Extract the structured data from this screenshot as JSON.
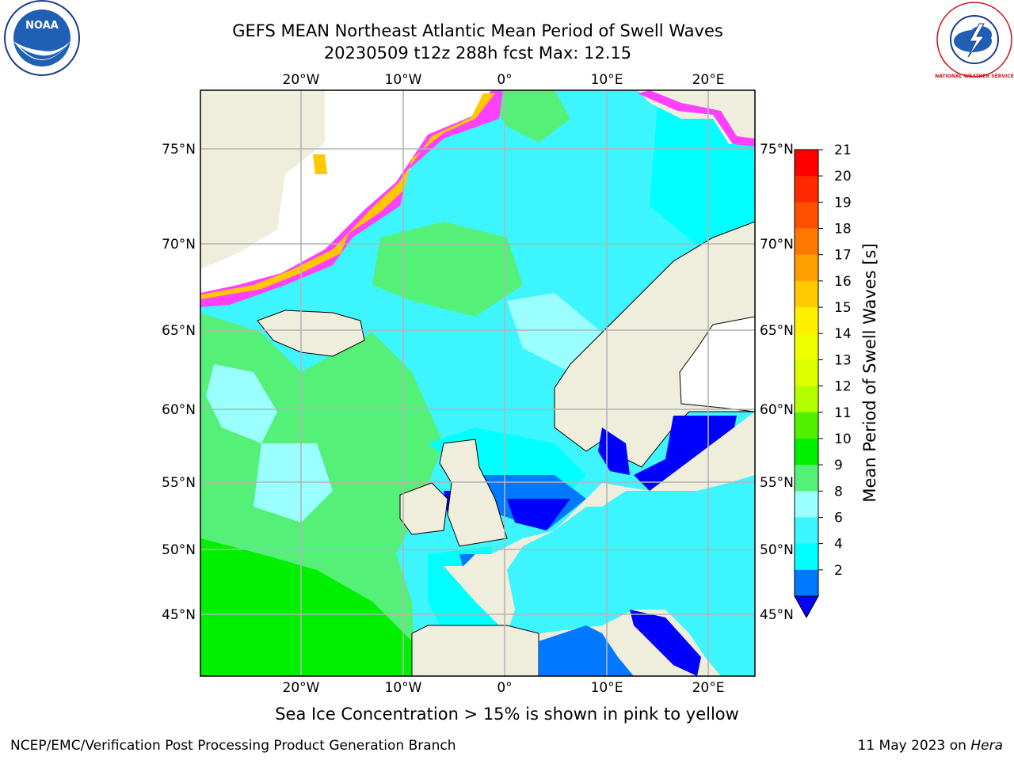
{
  "title": {
    "line1": "GEFS MEAN Northeast Atlantic Mean Period of Swell Waves",
    "line2": "20230509 t12z 288h fcst   Max: 12.15"
  },
  "logos": {
    "left": "NOAA",
    "right": "NATIONAL WEATHER SERVICE"
  },
  "map": {
    "lon_labels": [
      "20°W",
      "10°W",
      "0°",
      "10°E",
      "20°E"
    ],
    "lat_labels": [
      "75°N",
      "70°N",
      "65°N",
      "60°N",
      "55°N",
      "50°N",
      "45°N"
    ],
    "land_color": "#efeddc",
    "ocean_colors": [
      "#00ffff",
      "#3cf5ff",
      "#9bffff",
      "#55f078",
      "#00f000"
    ]
  },
  "colorbar": {
    "label": "Mean Period of Swell Waves [s]",
    "ticks": [
      "21",
      "20",
      "19",
      "18",
      "17",
      "16",
      "15",
      "14",
      "13",
      "12",
      "11",
      "10",
      "9",
      "8",
      "6",
      "4",
      "2"
    ],
    "colors": [
      "#ff0000",
      "#ff2800",
      "#ff5000",
      "#ff7800",
      "#ffa000",
      "#ffc800",
      "#fff000",
      "#f0ff00",
      "#dcff00",
      "#b4ff00",
      "#50f000",
      "#00f000",
      "#55f078",
      "#9bffff",
      "#3cf5ff",
      "#00ffff",
      "#0078ff"
    ],
    "under_color": "#0000ff"
  },
  "footer": {
    "note": "Sea Ice Concentration > 15% is shown in pink to yellow",
    "credit": "NCEP/EMC/Verification Post Processing Product Generation Branch",
    "date": "11 May 2023 on",
    "host": "Hera"
  }
}
